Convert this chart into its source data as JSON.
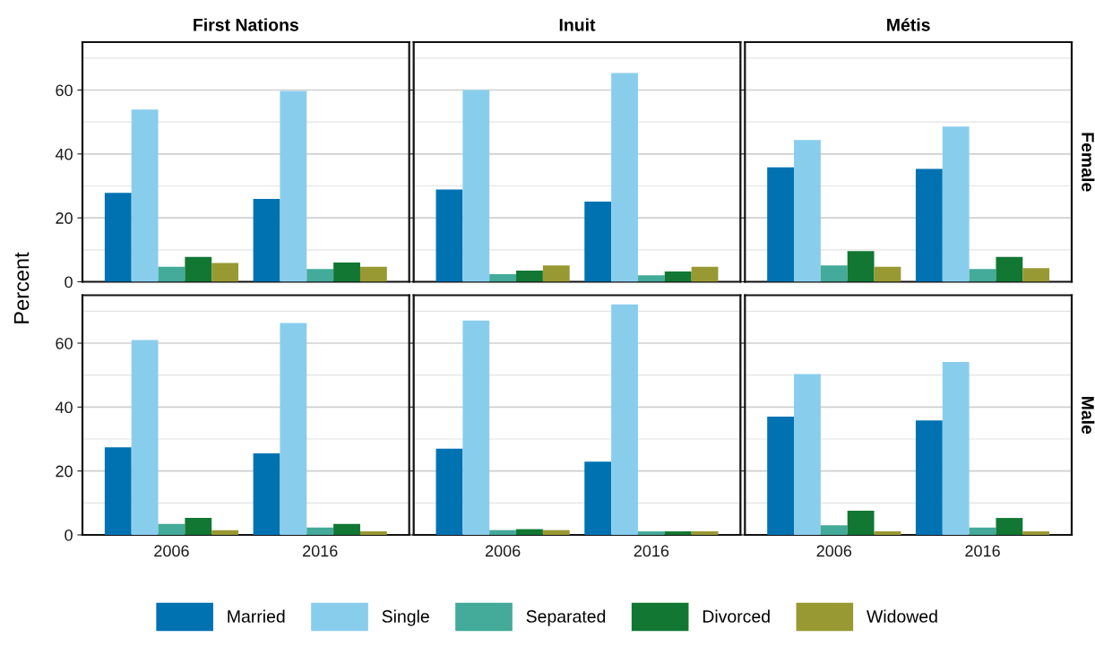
{
  "chart_data": [
    {
      "type": "bar",
      "title": "First Nations",
      "ylabel": "Percent",
      "categories": [
        "2006",
        "2016"
      ],
      "ylim": [
        0,
        75
      ],
      "yticks": [
        0,
        20,
        40,
        60
      ],
      "grid": true,
      "tick_labels": "y",
      "legend": "bottom",
      "series": [
        {
          "name": "Married",
          "color": "#0072b2",
          "values": [
            27.8,
            25.9
          ]
        },
        {
          "name": "Single",
          "color": "#89cded",
          "values": [
            53.9,
            59.7
          ]
        },
        {
          "name": "Separated",
          "color": "#44aa99",
          "values": [
            4.7,
            4.0
          ]
        },
        {
          "name": "Divorced",
          "color": "#117733",
          "values": [
            7.8,
            6.0
          ]
        },
        {
          "name": "Widowed",
          "color": "#999933",
          "values": [
            5.9,
            4.7
          ]
        }
      ]
    },
    {
      "type": "bar",
      "title": "Inuit",
      "categories": [
        "2006",
        "2016"
      ],
      "ylim": [
        0,
        75
      ],
      "yticks": [
        0,
        20,
        40,
        60
      ],
      "grid": true,
      "tick_labels": false,
      "series": [
        {
          "color": "#0072b2",
          "values": [
            28.9,
            25.1
          ]
        },
        {
          "color": "#89cded",
          "values": [
            60.0,
            65.3
          ]
        },
        {
          "color": "#44aa99",
          "values": [
            2.4,
            2.0
          ]
        },
        {
          "color": "#117733",
          "values": [
            3.5,
            3.2
          ]
        },
        {
          "color": "#999933",
          "values": [
            5.1,
            4.7
          ]
        }
      ]
    },
    {
      "type": "bar",
      "title": "Métis",
      "annotations": [
        "Female"
      ],
      "categories": [
        "2006",
        "2016"
      ],
      "ylim": [
        0,
        75
      ],
      "yticks": [
        0,
        20,
        40,
        60
      ],
      "grid": true,
      "tick_labels": false,
      "series": [
        {
          "color": "#0072b2",
          "values": [
            35.8,
            35.3
          ]
        },
        {
          "color": "#89cded",
          "values": [
            44.4,
            48.6
          ]
        },
        {
          "color": "#44aa99",
          "values": [
            5.1,
            4.0
          ]
        },
        {
          "color": "#117733",
          "values": [
            9.6,
            7.8
          ]
        },
        {
          "color": "#999933",
          "values": [
            4.7,
            4.3
          ]
        }
      ]
    },
    {
      "type": "bar",
      "categories": [
        "2006",
        "2016"
      ],
      "ylim": [
        0,
        75
      ],
      "yticks": [
        0,
        20,
        40,
        60
      ],
      "grid": true,
      "series": [
        {
          "color": "#0072b2",
          "values": [
            27.4,
            25.5
          ]
        },
        {
          "color": "#89cded",
          "values": [
            61.0,
            66.3
          ]
        },
        {
          "color": "#44aa99",
          "values": [
            3.4,
            2.3
          ]
        },
        {
          "color": "#117733",
          "values": [
            5.3,
            3.4
          ]
        },
        {
          "color": "#999933",
          "values": [
            1.5,
            1.1
          ]
        }
      ]
    },
    {
      "type": "bar",
      "categories": [
        "2006",
        "2016"
      ],
      "ylim": [
        0,
        75
      ],
      "yticks": [
        0,
        20,
        40,
        60
      ],
      "grid": true,
      "tick_labels": "x",
      "series": [
        {
          "color": "#0072b2",
          "values": [
            27.0,
            22.9
          ]
        },
        {
          "color": "#89cded",
          "values": [
            67.1,
            72.1
          ]
        },
        {
          "color": "#44aa99",
          "values": [
            1.5,
            1.1
          ]
        },
        {
          "color": "#117733",
          "values": [
            1.8,
            1.1
          ]
        },
        {
          "color": "#999933",
          "values": [
            1.5,
            1.1
          ]
        }
      ]
    },
    {
      "type": "bar",
      "annotations": [
        "Male"
      ],
      "categories": [
        "2006",
        "2016"
      ],
      "ylim": [
        0,
        75
      ],
      "yticks": [
        0,
        20,
        40,
        60
      ],
      "grid": true,
      "tick_labels": "x",
      "series": [
        {
          "color": "#0072b2",
          "values": [
            37.0,
            35.8
          ]
        },
        {
          "color": "#89cded",
          "values": [
            50.3,
            54.1
          ]
        },
        {
          "color": "#44aa99",
          "values": [
            3.0,
            2.3
          ]
        },
        {
          "color": "#117733",
          "values": [
            7.6,
            5.3
          ]
        },
        {
          "color": "#999933",
          "values": [
            1.1,
            1.1
          ]
        }
      ]
    }
  ]
}
